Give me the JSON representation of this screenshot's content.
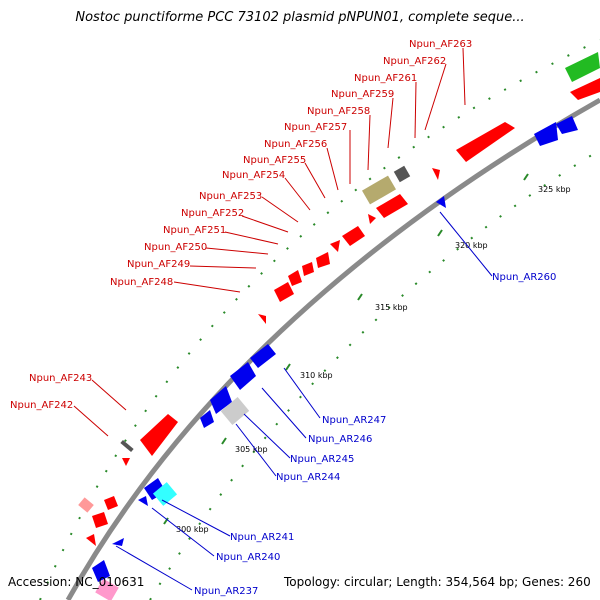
{
  "title": "Nostoc punctiforme PCC 73102 plasmid pNPUN01, complete seque...",
  "footer": {
    "accession": "Accession: NC_010631",
    "summary": "Topology: circular; Length: 354,564 bp; Genes: 260"
  },
  "colors": {
    "forward_label": "#cc0000",
    "reverse_label": "#0000cc",
    "backbone": "#8a8a8a"
  },
  "ticks": [
    "300 kbp",
    "305 kbp",
    "310 kbp",
    "315 kbp",
    "320 kbp",
    "325 kbp"
  ],
  "forward_labels": [
    "Npun_AF263",
    "Npun_AF262",
    "Npun_AF261",
    "Npun_AF259",
    "Npun_AF258",
    "Npun_AF257",
    "Npun_AF256",
    "Npun_AF255",
    "Npun_AF254",
    "Npun_AF253",
    "Npun_AF252",
    "Npun_AF251",
    "Npun_AF250",
    "Npun_AF249",
    "Npun_AF248",
    "Npun_AF243",
    "Npun_AF242"
  ],
  "reverse_labels": [
    "Npun_AR260",
    "Npun_AR247",
    "Npun_AR246",
    "Npun_AR245",
    "Npun_AR244",
    "Npun_AR241",
    "Npun_AR240",
    "Npun_AR237"
  ]
}
